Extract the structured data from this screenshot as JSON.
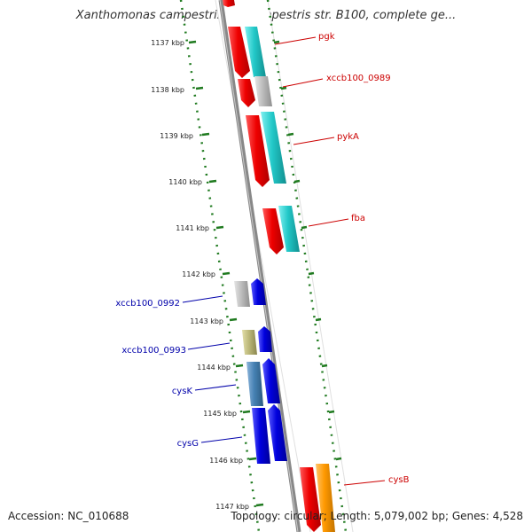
{
  "title": "Xanthomonas campestris pv. campestris str. B100, complete ge...",
  "footer": {
    "accession": "Accession: NC_010688",
    "summary": "Topology: circular; Length: 5,079,002 bp; Genes: 4,528"
  },
  "colors": {
    "background": "#ffffff",
    "backbone": "#888888",
    "tick_ring": "#1f7a1f",
    "red_gene": "#ee0000",
    "cyan_gene": "#22c8c8",
    "grey_gene": "#bdbdbd",
    "blue_gene": "#0000dd",
    "steel_gene": "#4682b4",
    "olive_gene": "#bcb87a",
    "orange_gene": "#ff9900",
    "label_red": "#cc0000",
    "label_blue": "#0000aa"
  },
  "ticks": [
    {
      "label": "1137 kbp"
    },
    {
      "label": "1138 kbp"
    },
    {
      "label": "1139 kbp"
    },
    {
      "label": "1140 kbp"
    },
    {
      "label": "1141 kbp"
    },
    {
      "label": "1142 kbp"
    },
    {
      "label": "1143 kbp"
    },
    {
      "label": "1144 kbp"
    },
    {
      "label": "1145 kbp"
    },
    {
      "label": "1146 kbp"
    },
    {
      "label": "1147 kbp"
    }
  ],
  "forward_labels": [
    {
      "text": "pgk"
    },
    {
      "text": "xccb100_0989"
    },
    {
      "text": "pykA"
    },
    {
      "text": "fba"
    },
    {
      "text": "cysB"
    }
  ],
  "reverse_labels": [
    {
      "text": "xccb100_0992"
    },
    {
      "text": "xccb100_0993"
    },
    {
      "text": "cysK"
    },
    {
      "text": "cysG"
    }
  ]
}
